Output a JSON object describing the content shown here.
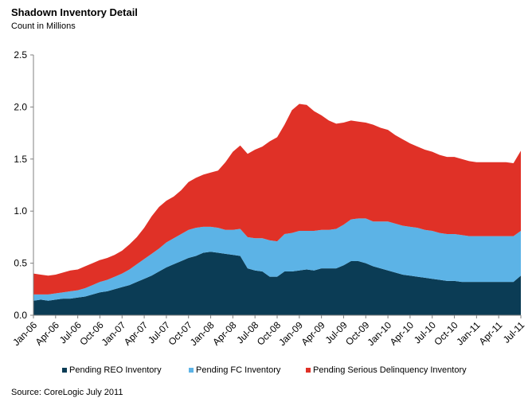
{
  "chart_data": {
    "type": "area",
    "stacked": true,
    "title": "Shadown Inventory Detail",
    "subtitle": "Count in Millions",
    "source": "Source: CoreLogic July 2011",
    "ylim": [
      0,
      2.5
    ],
    "y_ticks": [
      "0.0",
      "0.5",
      "1.0",
      "1.5",
      "2.0",
      "2.5"
    ],
    "x_ticks": [
      "Jan-06",
      "Apr-06",
      "Jul-06",
      "Oct-06",
      "Jan-07",
      "Apr-07",
      "Jul-07",
      "Oct-07",
      "Jan-08",
      "Apr-08",
      "Jul-08",
      "Oct-08",
      "Jan-09",
      "Apr-09",
      "Jul-09",
      "Oct-09",
      "Jan-10",
      "Apr-10",
      "Jul-10",
      "Oct-10",
      "Jan-11",
      "Apr-11",
      "Jul-11"
    ],
    "grid": false,
    "legend_position": "bottom",
    "series": [
      {
        "name": "Pending REO Inventory",
        "color": "#0b3c55",
        "values": [
          0.14,
          0.15,
          0.14,
          0.15,
          0.16,
          0.16,
          0.17,
          0.18,
          0.2,
          0.22,
          0.23,
          0.25,
          0.27,
          0.29,
          0.32,
          0.35,
          0.38,
          0.42,
          0.46,
          0.49,
          0.52,
          0.55,
          0.57,
          0.6,
          0.61,
          0.6,
          0.59,
          0.58,
          0.57,
          0.45,
          0.43,
          0.42,
          0.37,
          0.37,
          0.42,
          0.42,
          0.43,
          0.44,
          0.43,
          0.45,
          0.45,
          0.45,
          0.48,
          0.52,
          0.52,
          0.5,
          0.47,
          0.45,
          0.43,
          0.41,
          0.39,
          0.38,
          0.37,
          0.36,
          0.35,
          0.34,
          0.33,
          0.33,
          0.32,
          0.32,
          0.32,
          0.32,
          0.32,
          0.32,
          0.32,
          0.32,
          0.38
        ]
      },
      {
        "name": "Pending FC Inventory",
        "color": "#5cb3e6",
        "values": [
          0.06,
          0.05,
          0.06,
          0.06,
          0.06,
          0.07,
          0.07,
          0.08,
          0.09,
          0.1,
          0.11,
          0.12,
          0.13,
          0.15,
          0.17,
          0.19,
          0.21,
          0.22,
          0.24,
          0.25,
          0.26,
          0.27,
          0.27,
          0.25,
          0.24,
          0.24,
          0.23,
          0.24,
          0.26,
          0.3,
          0.31,
          0.32,
          0.35,
          0.34,
          0.36,
          0.37,
          0.38,
          0.37,
          0.38,
          0.37,
          0.37,
          0.38,
          0.39,
          0.4,
          0.41,
          0.43,
          0.43,
          0.45,
          0.47,
          0.47,
          0.47,
          0.47,
          0.47,
          0.46,
          0.46,
          0.45,
          0.45,
          0.45,
          0.45,
          0.44,
          0.44,
          0.44,
          0.44,
          0.44,
          0.44,
          0.44,
          0.43
        ]
      },
      {
        "name": "Pending Serious Delinquency Inventory",
        "color": "#e03127",
        "values": [
          0.2,
          0.19,
          0.18,
          0.18,
          0.19,
          0.2,
          0.2,
          0.21,
          0.21,
          0.21,
          0.21,
          0.21,
          0.22,
          0.24,
          0.26,
          0.3,
          0.36,
          0.4,
          0.4,
          0.4,
          0.42,
          0.46,
          0.48,
          0.5,
          0.52,
          0.55,
          0.65,
          0.75,
          0.8,
          0.8,
          0.85,
          0.88,
          0.95,
          1.0,
          1.05,
          1.18,
          1.22,
          1.21,
          1.15,
          1.1,
          1.05,
          1.01,
          0.98,
          0.95,
          0.93,
          0.92,
          0.93,
          0.9,
          0.88,
          0.85,
          0.83,
          0.8,
          0.78,
          0.77,
          0.76,
          0.75,
          0.74,
          0.74,
          0.73,
          0.72,
          0.71,
          0.71,
          0.71,
          0.71,
          0.71,
          0.7,
          0.77
        ]
      }
    ]
  }
}
